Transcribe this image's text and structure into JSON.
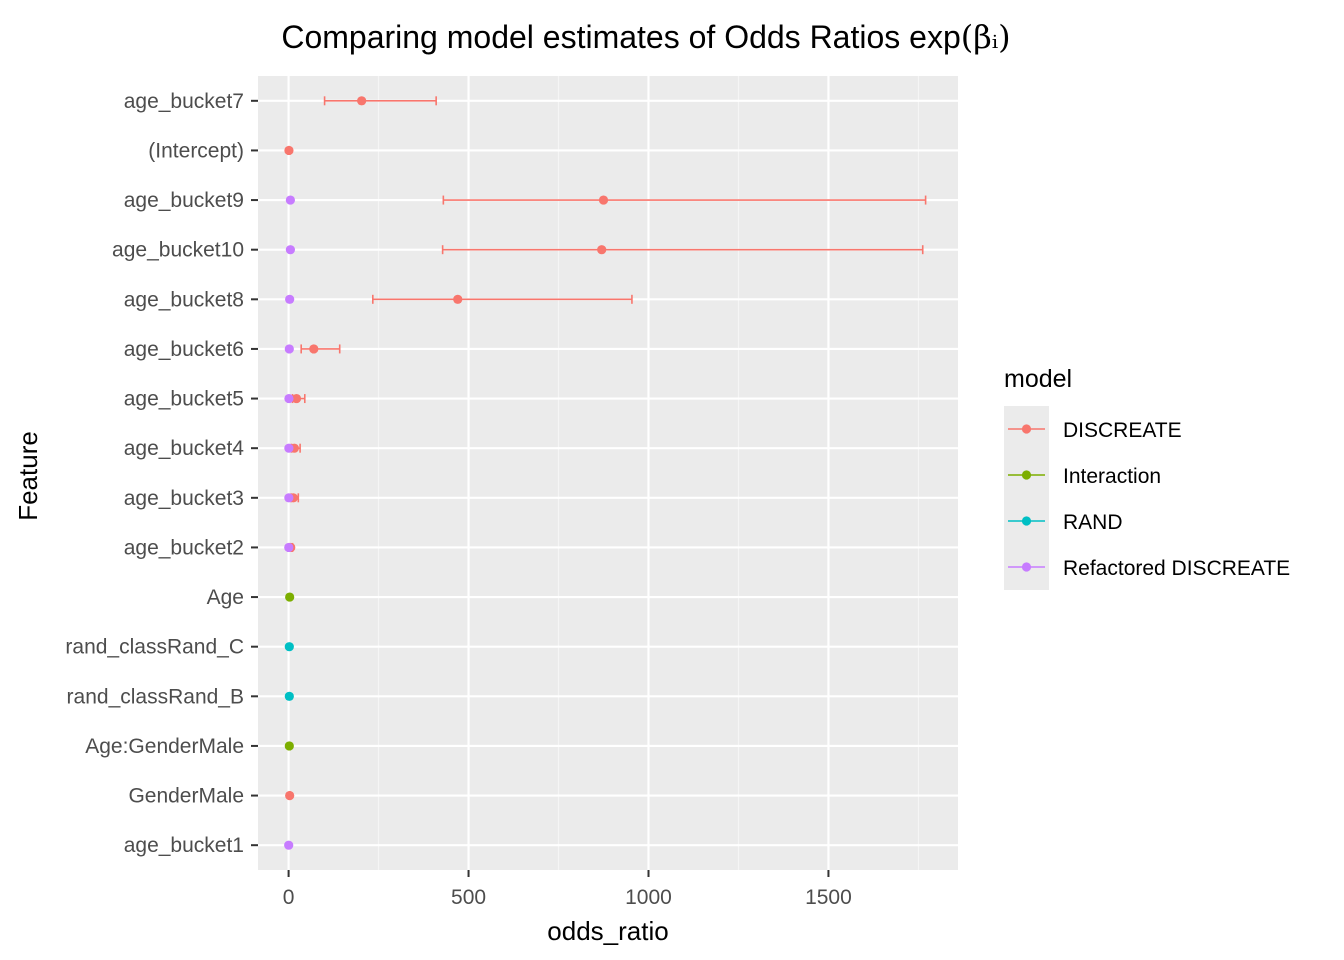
{
  "chart_data": {
    "type": "scatter",
    "title": "Comparing model estimates of Odds Ratios exp",
    "title_math": "(βᵢ)",
    "xlabel": "odds_ratio",
    "ylabel": "Feature",
    "xlim": [
      -85,
      1860
    ],
    "xticks": [
      0,
      500,
      1000,
      1500
    ],
    "grid": true,
    "legend": {
      "title": "model",
      "position": "right",
      "entries": [
        "DISCREATE",
        "Interaction",
        "RAND",
        "Refactored DISCREATE"
      ]
    },
    "categories": [
      "age_bucket7",
      "(Intercept)",
      "age_bucket9",
      "age_bucket10",
      "age_bucket8",
      "age_bucket6",
      "age_bucket5",
      "age_bucket4",
      "age_bucket3",
      "age_bucket2",
      "Age",
      "rand_classRand_C",
      "rand_classRand_B",
      "Age:GenderMale",
      "GenderMale",
      "age_bucket1"
    ],
    "series": [
      {
        "name": "DISCREATE",
        "color": "#F8766D",
        "points": [
          {
            "feature": "age_bucket7",
            "value": 203,
            "lower": 100,
            "upper": 410
          },
          {
            "feature": "(Intercept)",
            "value": 1,
            "lower": 0.5,
            "upper": 2
          },
          {
            "feature": "age_bucket9",
            "value": 875,
            "lower": 430,
            "upper": 1770
          },
          {
            "feature": "age_bucket10",
            "value": 870,
            "lower": 428,
            "upper": 1762
          },
          {
            "feature": "age_bucket8",
            "value": 470,
            "lower": 234,
            "upper": 954
          },
          {
            "feature": "age_bucket6",
            "value": 70,
            "lower": 35,
            "upper": 142
          },
          {
            "feature": "age_bucket5",
            "value": 22,
            "lower": 11,
            "upper": 45
          },
          {
            "feature": "age_bucket4",
            "value": 16,
            "lower": 8,
            "upper": 32
          },
          {
            "feature": "age_bucket3",
            "value": 13,
            "lower": 7,
            "upper": 27
          },
          {
            "feature": "age_bucket2",
            "value": 6,
            "lower": 3,
            "upper": 11
          },
          {
            "feature": "GenderMale",
            "value": 3,
            "lower": 2,
            "upper": 4
          }
        ]
      },
      {
        "name": "Interaction",
        "color": "#7CAE00",
        "points": [
          {
            "feature": "Age",
            "value": 3
          },
          {
            "feature": "Age:GenderMale",
            "value": 2
          }
        ]
      },
      {
        "name": "RAND",
        "color": "#00BFC4",
        "points": [
          {
            "feature": "rand_classRand_C",
            "value": 2
          },
          {
            "feature": "rand_classRand_B",
            "value": 2
          }
        ]
      },
      {
        "name": "Refactored DISCREATE",
        "color": "#C77CFF",
        "points": [
          {
            "feature": "age_bucket9",
            "value": 5
          },
          {
            "feature": "age_bucket10",
            "value": 5
          },
          {
            "feature": "age_bucket8",
            "value": 3
          },
          {
            "feature": "age_bucket6",
            "value": 2
          },
          {
            "feature": "age_bucket5",
            "value": 1
          },
          {
            "feature": "age_bucket4",
            "value": 0.8
          },
          {
            "feature": "age_bucket3",
            "value": 0.7
          },
          {
            "feature": "age_bucket2",
            "value": 0.5
          },
          {
            "feature": "age_bucket1",
            "value": 0.3
          }
        ]
      }
    ]
  }
}
